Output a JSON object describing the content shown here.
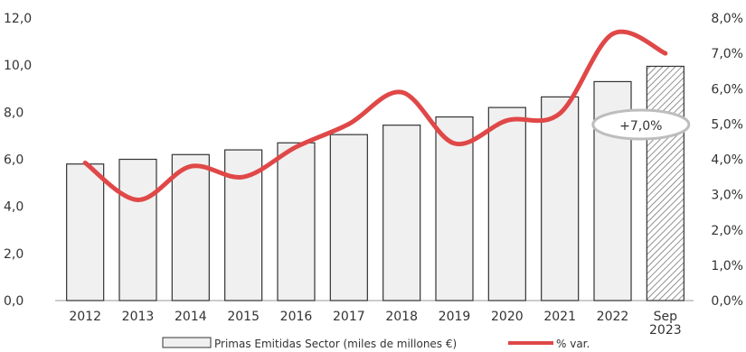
{
  "chart_data": {
    "type": "bar",
    "categories": [
      "2012",
      "2013",
      "2014",
      "2015",
      "2016",
      "2017",
      "2018",
      "2019",
      "2020",
      "2021",
      "2022",
      "Sep 2023"
    ],
    "series": [
      {
        "name": "Primas Emitidas Sector (miles de millones €)",
        "type": "bar",
        "axis": "left",
        "values": [
          5.8,
          6.0,
          6.2,
          6.4,
          6.7,
          7.05,
          7.45,
          7.8,
          8.2,
          8.65,
          9.3,
          9.95
        ],
        "color": "#f0f0f0",
        "stroke": "#333333",
        "last_bar_pattern": "hatched"
      },
      {
        "name": "% var.",
        "type": "line",
        "axis": "right",
        "values": [
          3.9,
          2.85,
          3.8,
          3.5,
          4.35,
          5.0,
          5.9,
          4.45,
          5.1,
          5.3,
          7.55,
          7.0
        ],
        "color": "#e04848"
      }
    ],
    "y_left": {
      "ylim": [
        0,
        12
      ],
      "ticks": [
        "0,0",
        "2,0",
        "4,0",
        "6,0",
        "8,0",
        "10,0",
        "12,0"
      ]
    },
    "y_right": {
      "ylim": [
        0,
        8
      ],
      "ticks": [
        "0,0%",
        "1,0%",
        "2,0%",
        "3,0%",
        "4,0%",
        "5,0%",
        "6,0%",
        "7,0%",
        "8,0%"
      ]
    },
    "annotation": {
      "text": "+7,0%",
      "category": "Sep 2023"
    },
    "x_tick_labels": [
      "2012",
      "2013",
      "2014",
      "2015",
      "2016",
      "2017",
      "2018",
      "2019",
      "2020",
      "2021",
      "2022",
      "Sep\n2023"
    ],
    "legend": {
      "position": "bottom",
      "entries": [
        "Primas Emitidas Sector (miles de millones €)",
        "% var."
      ]
    },
    "grid": false
  }
}
